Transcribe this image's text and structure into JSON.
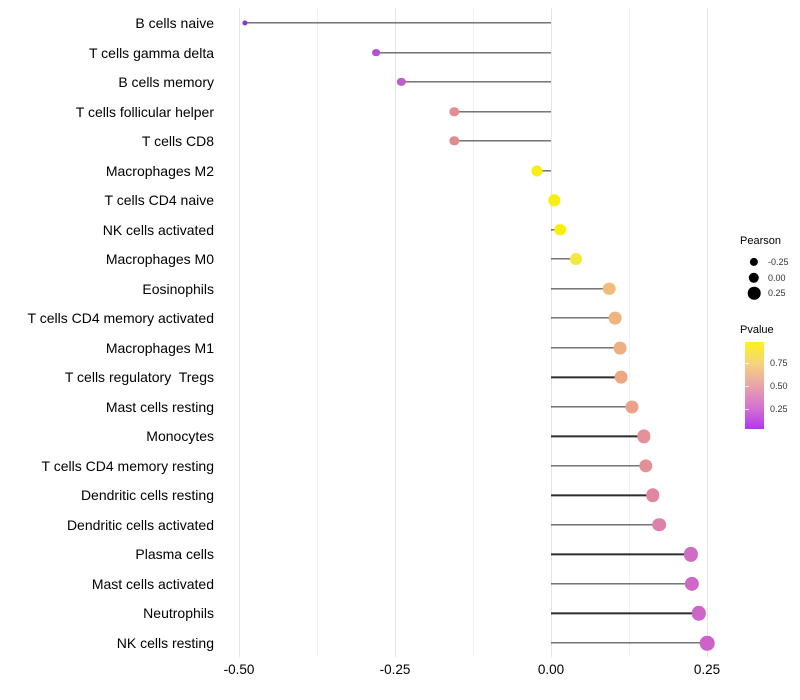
{
  "chart_data": {
    "type": "lollipop",
    "title": "",
    "xlabel": "",
    "ylabel": "",
    "grid": "vertical-only",
    "xlim": [
      -0.527,
      0.28
    ],
    "x_ticks": [
      {
        "label": "-0.50",
        "value": -0.5
      },
      {
        "label": "-0.25",
        "value": -0.25
      },
      {
        "label": "0.00",
        "value": 0.0
      },
      {
        "label": "0.25",
        "value": 0.25
      }
    ],
    "points": [
      {
        "label": "B cells naive",
        "pearson": -0.49,
        "color": "#9331d8"
      },
      {
        "label": "T cells gamma delta",
        "pearson": -0.28,
        "color": "#b44fd6"
      },
      {
        "label": "B cells memory",
        "pearson": -0.24,
        "color": "#c05ccd"
      },
      {
        "label": "T cells follicular helper",
        "pearson": -0.155,
        "color": "#e18f93"
      },
      {
        "label": "T cells CD8",
        "pearson": -0.155,
        "color": "#de8c8e"
      },
      {
        "label": "Macrophages M2",
        "pearson": -0.022,
        "color": "#f6ee16"
      },
      {
        "label": "T cells CD4 naive",
        "pearson": 0.005,
        "color": "#f7ef11"
      },
      {
        "label": "NK cells activated",
        "pearson": 0.015,
        "color": "#f8f007"
      },
      {
        "label": "Macrophages M0",
        "pearson": 0.04,
        "color": "#f6e73c"
      },
      {
        "label": "Eosinophils",
        "pearson": 0.093,
        "color": "#f0bc7c"
      },
      {
        "label": "T cells CD4 memory activated",
        "pearson": 0.103,
        "color": "#efb47f"
      },
      {
        "label": "Macrophages M1",
        "pearson": 0.111,
        "color": "#edb084"
      },
      {
        "label": "T cells regulatory  Tregs",
        "pearson": 0.112,
        "color": "#eca981"
      },
      {
        "label": "Mast cells resting",
        "pearson": 0.13,
        "color": "#eaa28b"
      },
      {
        "label": "Monocytes",
        "pearson": 0.149,
        "color": "#e4929a"
      },
      {
        "label": "T cells CD4 memory resting",
        "pearson": 0.152,
        "color": "#e28f96"
      },
      {
        "label": "Dendritic cells resting",
        "pearson": 0.163,
        "color": "#e0879f"
      },
      {
        "label": "Dendritic cells activated",
        "pearson": 0.173,
        "color": "#dc81a8"
      },
      {
        "label": "Plasma cells",
        "pearson": 0.224,
        "color": "#d16cc5"
      },
      {
        "label": "Mast cells activated",
        "pearson": 0.226,
        "color": "#cf68c7"
      },
      {
        "label": "Neutrophils",
        "pearson": 0.237,
        "color": "#cd66c8"
      },
      {
        "label": "NK cells resting",
        "pearson": 0.25,
        "color": "#cb63ca"
      }
    ],
    "legend_size": {
      "title": "Pearson",
      "circle_color": "#000000",
      "entries": [
        {
          "label": "-0.25",
          "r": 4.1
        },
        {
          "label": "0.00",
          "r": 5.2
        },
        {
          "label": "0.25",
          "r": 6.3
        }
      ]
    },
    "legend_color": {
      "title": "Pvalue",
      "labels": [
        "0.75",
        "0.50",
        "0.25"
      ],
      "gradient": [
        {
          "color": "#fcf21a",
          "pos": 0
        },
        {
          "color": "#f5d57e",
          "pos": 24
        },
        {
          "color": "#e9a0ac",
          "pos": 52
        },
        {
          "color": "#d26fd2",
          "pos": 77
        },
        {
          "color": "#b336f1",
          "pos": 100
        }
      ]
    }
  }
}
